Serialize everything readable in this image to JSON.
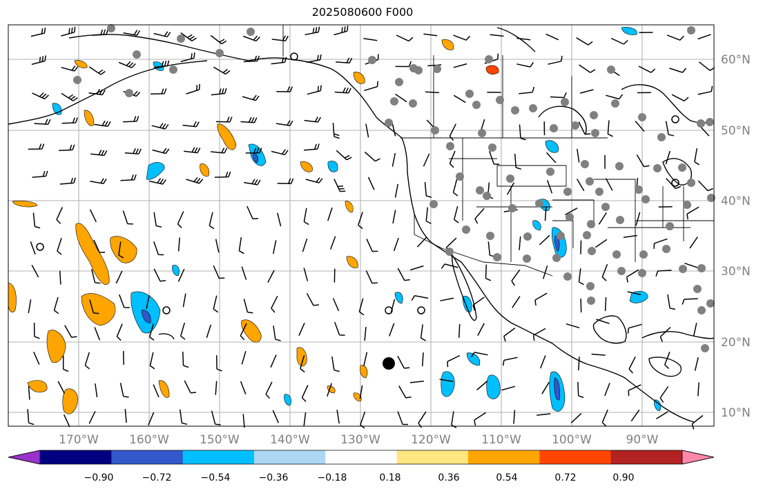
{
  "title": "2025080600 F000",
  "map": {
    "lon_labels": [
      "170°W",
      "160°W",
      "150°W",
      "140°W",
      "130°W",
      "120°W",
      "110°W",
      "100°W",
      "90°W"
    ],
    "lat_labels": [
      "60°N",
      "50°N",
      "40°N",
      "30°N",
      "20°N",
      "10°N"
    ],
    "label_color": "#808080",
    "grid_color": "#b0b0b0"
  },
  "colorbar": {
    "ticks": [
      "−0.90",
      "−0.72",
      "−0.54",
      "−0.36",
      "−0.18",
      "0.18",
      "0.36",
      "0.54",
      "0.72",
      "0.90"
    ],
    "colors": [
      "#9932cc",
      "#000080",
      "#3358cc",
      "#00bfff",
      "#add8f5",
      "#ffffff",
      "#ffe680",
      "#ffa500",
      "#ff4500",
      "#b22222",
      "#ff88aa"
    ]
  },
  "legend_colors": {
    "positive": "#ffa500",
    "negative": "#00bfff",
    "stations": "#808080"
  }
}
